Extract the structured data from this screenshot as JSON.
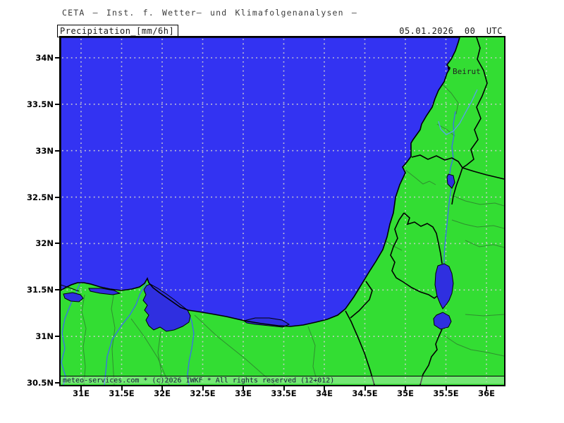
{
  "header": {
    "line1": "CETA – Inst. f. Wetter– und Klimafolgenanalysen –"
  },
  "title_box": {
    "label": "Precipitation_[mm/6h]"
  },
  "datetime": "05.01.2026  00  UTC",
  "map": {
    "city_label": "Beirut",
    "attribution": "meteo-services.com * (c)2026 IWKF * All rights reserved (12+012)"
  },
  "axes": {
    "lat_labels": [
      "34N",
      "33.5N",
      "33N",
      "32.5N",
      "32N",
      "31.5N",
      "31N",
      "30.5N"
    ],
    "lon_labels": [
      "31E",
      "31.5E",
      "32E",
      "32.5E",
      "33E",
      "33.5E",
      "34E",
      "34.5E",
      "35E",
      "35.5E",
      "36E"
    ]
  },
  "colors": {
    "sea": "#3333f2",
    "land": "#33dd33",
    "lake": "#2f2fe0",
    "river": "#3a6cf0",
    "river_light": "#58a0f0",
    "grid": "#cfcfcf",
    "admin": "#2f8f2f",
    "border": "#000000",
    "text_dark": "#1a1a1a",
    "text_gray": "#3c3c3c"
  }
}
